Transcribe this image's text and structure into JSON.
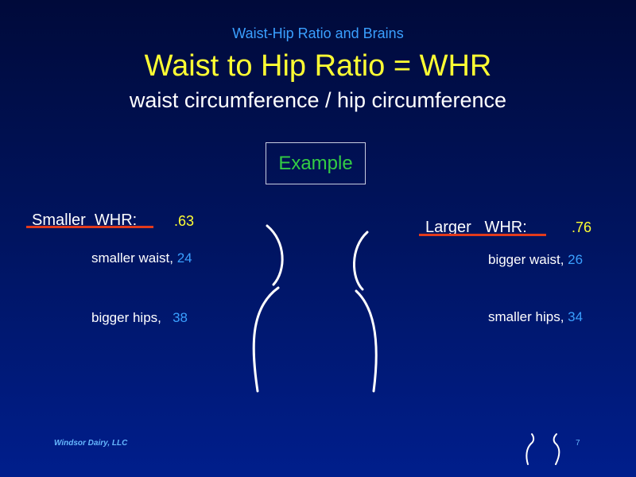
{
  "slide": {
    "subtitle": "Waist-Hip Ratio and Brains",
    "title": "Waist to Hip Ratio = WHR",
    "formula": "waist circumference / hip circumference",
    "example_label": "Example",
    "left": {
      "heading": "Smaller  WHR:",
      "value": ".63",
      "waist_label": "smaller waist, ",
      "waist_value": "24",
      "hips_label": "bigger hips,   ",
      "hips_value": "38"
    },
    "right": {
      "heading": "Larger   WHR:",
      "value": ".76",
      "waist_label": "bigger waist, ",
      "waist_value": "26",
      "hips_label": "smaller hips, ",
      "hips_value": "34"
    },
    "footer": "Windsor Dairy, LLC",
    "page_number": "7"
  },
  "colors": {
    "title": "#ffff33",
    "subtitle": "#3aa0ff",
    "example": "#33cc44",
    "underline": "#e23a1c",
    "background_top": "#000a3a",
    "background_bottom": "#001e8c"
  }
}
